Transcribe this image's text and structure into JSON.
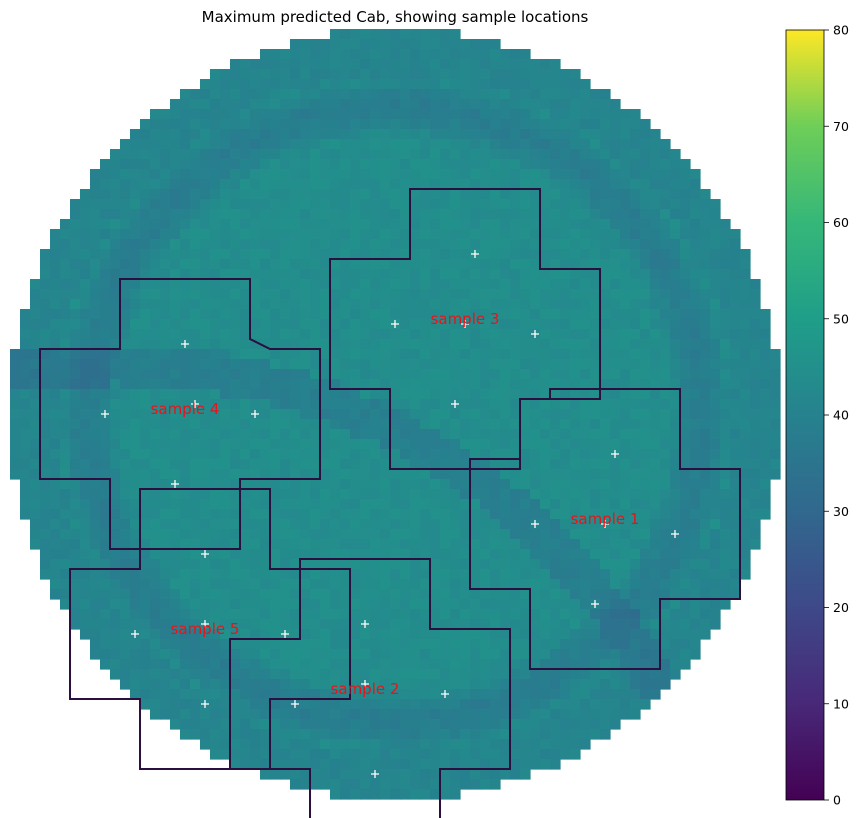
{
  "chart_data": {
    "type": "heatmap",
    "title": "Maximum predicted Cab, showing sample locations",
    "colormap": "viridis",
    "colorbar": {
      "min": 0,
      "max": 80,
      "ticks": [
        0,
        10,
        20,
        30,
        40,
        50,
        60,
        70,
        80
      ]
    },
    "field": {
      "shape": "circle",
      "grid_resolution": 77,
      "base_value": 44,
      "ring_value": 34,
      "min_value": 32,
      "max_value": 56
    },
    "samples": [
      {
        "label": "sample 1",
        "center": [
          59.5,
          49.0
        ],
        "points": [
          [
            60.5,
            42.5
          ],
          [
            52.5,
            49.5
          ],
          [
            59.5,
            49.5
          ],
          [
            66.5,
            50.5
          ],
          [
            58.5,
            57.5
          ]
        ],
        "outline": [
          [
            54,
            36
          ],
          [
            67,
            36
          ],
          [
            67,
            44
          ],
          [
            73,
            44
          ],
          [
            73,
            57
          ],
          [
            65,
            57
          ],
          [
            65,
            64
          ],
          [
            52,
            64
          ],
          [
            52,
            56
          ],
          [
            46,
            56
          ],
          [
            46,
            43
          ],
          [
            51,
            43
          ],
          [
            51,
            37
          ],
          [
            54,
            37
          ]
        ]
      },
      {
        "label": "sample 2",
        "center": [
          35.5,
          66.0
        ],
        "points": [
          [
            35.5,
            59.5
          ],
          [
            28.5,
            67.5
          ],
          [
            35.5,
            65.5
          ],
          [
            43.5,
            66.5
          ],
          [
            36.5,
            74.5
          ]
        ],
        "outline": [
          [
            29,
            53
          ],
          [
            42,
            53
          ],
          [
            42,
            60
          ],
          [
            50,
            60
          ],
          [
            50,
            74
          ],
          [
            43,
            74
          ],
          [
            43,
            80
          ],
          [
            30,
            80
          ],
          [
            30,
            74
          ],
          [
            22,
            74
          ],
          [
            22,
            61
          ],
          [
            29,
            61
          ]
        ]
      },
      {
        "label": "sample 3",
        "center": [
          45.5,
          29.0
        ],
        "points": [
          [
            46.5,
            22.5
          ],
          [
            38.5,
            29.5
          ],
          [
            45.5,
            29.5
          ],
          [
            52.5,
            30.5
          ],
          [
            44.5,
            37.5
          ]
        ],
        "outline": [
          [
            40,
            16
          ],
          [
            53,
            16
          ],
          [
            53,
            24
          ],
          [
            59,
            24
          ],
          [
            59,
            37
          ],
          [
            51,
            37
          ],
          [
            51,
            44
          ],
          [
            38,
            44
          ],
          [
            38,
            36
          ],
          [
            32,
            36
          ],
          [
            32,
            23
          ],
          [
            40,
            23
          ]
        ]
      },
      {
        "label": "sample 4",
        "center": [
          17.5,
          38.0
        ],
        "points": [
          [
            17.5,
            31.5
          ],
          [
            9.5,
            38.5
          ],
          [
            18.5,
            37.5
          ],
          [
            24.5,
            38.5
          ],
          [
            16.5,
            45.5
          ]
        ],
        "outline": [
          [
            11,
            25
          ],
          [
            24,
            25
          ],
          [
            24,
            31
          ],
          [
            26,
            32
          ],
          [
            31,
            32
          ],
          [
            31,
            45
          ],
          [
            23,
            45
          ],
          [
            23,
            52
          ],
          [
            10,
            52
          ],
          [
            10,
            45
          ],
          [
            3,
            45
          ],
          [
            3,
            32
          ],
          [
            11,
            32
          ]
        ]
      },
      {
        "label": "sample 5",
        "center": [
          19.5,
          60.0
        ],
        "points": [
          [
            19.5,
            52.5
          ],
          [
            12.5,
            60.5
          ],
          [
            19.5,
            59.5
          ],
          [
            27.5,
            60.5
          ],
          [
            19.5,
            67.5
          ]
        ],
        "outline": [
          [
            13,
            46
          ],
          [
            26,
            46
          ],
          [
            26,
            54
          ],
          [
            34,
            54
          ],
          [
            34,
            67
          ],
          [
            26,
            67
          ],
          [
            26,
            74
          ],
          [
            13,
            74
          ],
          [
            13,
            67
          ],
          [
            6,
            67
          ],
          [
            6,
            54
          ],
          [
            13,
            54
          ]
        ]
      }
    ]
  }
}
